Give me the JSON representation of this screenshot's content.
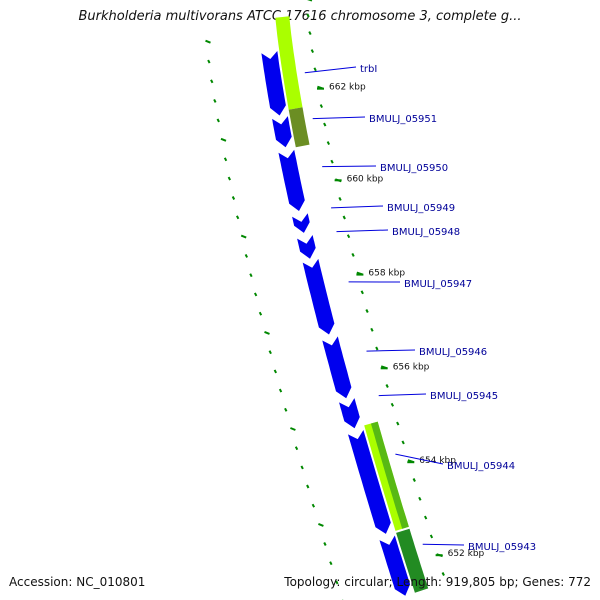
{
  "title": "Burkholderia multivorans ATCC 17616 chromosome 3, complete g...",
  "accession": "Accession: NC_010801",
  "summary": "Topology: circular; Length: 919,805 bp; Genes: 772",
  "colors": {
    "backbone": "#888888",
    "cds_forward": "#0000ee",
    "gene_lightgreen": "#aaff00",
    "gene_olive": "#6b8e23",
    "gene_darkgreen": "#228b22",
    "label_text": "#000099",
    "tick": "#008800"
  },
  "tick_labels": [
    {
      "text": "662 kbp",
      "kbp": 662
    },
    {
      "text": "660 kbp",
      "kbp": 660
    },
    {
      "text": "658 kbp",
      "kbp": 658
    },
    {
      "text": "656 kbp",
      "kbp": 656
    },
    {
      "text": "654 kbp",
      "kbp": 654
    },
    {
      "text": "652 kbp",
      "kbp": 652
    }
  ],
  "genes": [
    {
      "label": "trbI"
    },
    {
      "label": "BMULJ_05951"
    },
    {
      "label": "BMULJ_05950"
    },
    {
      "label": "BMULJ_05949"
    },
    {
      "label": "BMULJ_05948"
    },
    {
      "label": "BMULJ_05947"
    },
    {
      "label": "BMULJ_05946"
    },
    {
      "label": "BMULJ_05945"
    },
    {
      "label": "BMULJ_05944"
    },
    {
      "label": "BMULJ_05943"
    }
  ]
}
